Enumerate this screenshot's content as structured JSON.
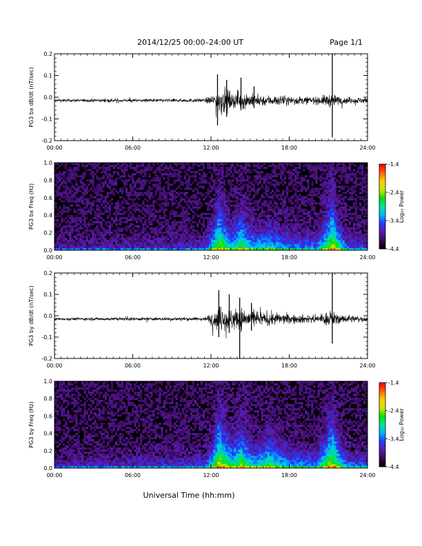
{
  "header": {
    "title": "2014/12/25  00:00–24:00 UT",
    "page": "Page 1/1"
  },
  "footer": {
    "xlabel": "Universal Time (hh:mm)"
  },
  "colors": {
    "background": "#ffffff",
    "trace": "#000000",
    "colormap": [
      "#000000",
      "#3a0a5a",
      "#5a1aa8",
      "#1f3cff",
      "#00b4ff",
      "#00e6a0",
      "#00e000",
      "#c8e600",
      "#ffd000",
      "#ff6a00",
      "#ff0000"
    ]
  },
  "chart_data": [
    {
      "type": "line",
      "ylabel": "PG3 bx dB/dt (nT/sec)",
      "xticks": [
        "00:00",
        "06:00",
        "12:00",
        "18:00",
        "24:00"
      ],
      "xlim": [
        0,
        24
      ],
      "ylim": [
        -0.2,
        0.2
      ],
      "yticks": [
        "-0.2",
        "-0.1",
        "0.0",
        "0.1",
        "0.2"
      ],
      "baseline": -0.015,
      "envelope": [
        [
          0,
          0.006
        ],
        [
          11.5,
          0.008
        ],
        [
          12.3,
          0.03
        ],
        [
          12.8,
          0.07
        ],
        [
          13.5,
          0.035
        ],
        [
          14.4,
          0.04
        ],
        [
          15.2,
          0.03
        ],
        [
          16,
          0.025
        ],
        [
          18,
          0.02
        ],
        [
          20,
          0.016
        ],
        [
          21.2,
          0.03
        ],
        [
          22,
          0.016
        ],
        [
          24,
          0.013
        ]
      ],
      "peaks": [
        [
          12.5,
          0.105,
          -0.13
        ],
        [
          13.2,
          0.08,
          -0.09
        ],
        [
          14.3,
          0.09,
          -0.06
        ],
        [
          15.3,
          0.05,
          -0.05
        ],
        [
          21.3,
          0.2,
          -0.185
        ]
      ]
    },
    {
      "type": "heatmap",
      "ylabel": "PG3 bx Freq (Hz)",
      "xticks": [
        "00:00",
        "06:00",
        "12:00",
        "18:00",
        "24:00"
      ],
      "xlim": [
        0,
        24
      ],
      "ylim": [
        0,
        1
      ],
      "yticks": [
        "0.0",
        "0.2",
        "0.4",
        "0.6",
        "0.8",
        "1.0"
      ],
      "colorbar": {
        "label": "Log₁₀ Power",
        "ticks": [
          "-1.4",
          "-2.4",
          "-3.4",
          "-4.4"
        ],
        "range": [
          -4.4,
          -1.4
        ]
      },
      "activity": [
        [
          0,
          0.15
        ],
        [
          11.5,
          0.25
        ],
        [
          12.6,
          0.9
        ],
        [
          13.6,
          0.6
        ],
        [
          14.3,
          0.8
        ],
        [
          15.3,
          0.55
        ],
        [
          16.5,
          0.6
        ],
        [
          18,
          0.45
        ],
        [
          20,
          0.4
        ],
        [
          21.3,
          0.95
        ],
        [
          22.5,
          0.35
        ],
        [
          24,
          0.3
        ]
      ]
    },
    {
      "type": "line",
      "ylabel": "PG3 by dB/dt (nT/sec)",
      "xticks": [
        "00:00",
        "06:00",
        "12:00",
        "18:00",
        "24:00"
      ],
      "xlim": [
        0,
        24
      ],
      "ylim": [
        -0.2,
        0.2
      ],
      "yticks": [
        "-0.2",
        "-0.1",
        "0.0",
        "0.1",
        "0.2"
      ],
      "baseline": -0.015,
      "envelope": [
        [
          0,
          0.006
        ],
        [
          11.5,
          0.008
        ],
        [
          12.3,
          0.04
        ],
        [
          12.8,
          0.06
        ],
        [
          13.5,
          0.05
        ],
        [
          14.4,
          0.05
        ],
        [
          15.5,
          0.035
        ],
        [
          16.5,
          0.03
        ],
        [
          18,
          0.022
        ],
        [
          20,
          0.018
        ],
        [
          21.2,
          0.035
        ],
        [
          22,
          0.018
        ],
        [
          24,
          0.014
        ]
      ],
      "peaks": [
        [
          12.6,
          0.12,
          -0.1
        ],
        [
          13.4,
          0.1,
          -0.08
        ],
        [
          14.2,
          0.085,
          -0.22
        ],
        [
          15.1,
          0.06,
          -0.07
        ],
        [
          21.3,
          0.2,
          -0.13
        ]
      ]
    },
    {
      "type": "heatmap",
      "ylabel": "PG3 by Freq (Hz)",
      "xticks": [
        "00:00",
        "06:00",
        "12:00",
        "18:00",
        "24:00"
      ],
      "xlim": [
        0,
        24
      ],
      "ylim": [
        0,
        1
      ],
      "yticks": [
        "0.0",
        "0.2",
        "0.4",
        "0.6",
        "0.8",
        "1.0"
      ],
      "colorbar": {
        "label": "Log₁₀ Power",
        "ticks": [
          "-1.4",
          "-2.4",
          "-3.4",
          "-4.4"
        ],
        "range": [
          -4.4,
          -1.4
        ]
      },
      "activity": [
        [
          0,
          0.18
        ],
        [
          11.5,
          0.3
        ],
        [
          12.6,
          0.95
        ],
        [
          13.6,
          0.7
        ],
        [
          14.3,
          0.85
        ],
        [
          15.3,
          0.6
        ],
        [
          16.5,
          0.75
        ],
        [
          18,
          0.5
        ],
        [
          20,
          0.45
        ],
        [
          21.3,
          0.95
        ],
        [
          22.5,
          0.4
        ],
        [
          24,
          0.35
        ]
      ]
    }
  ]
}
